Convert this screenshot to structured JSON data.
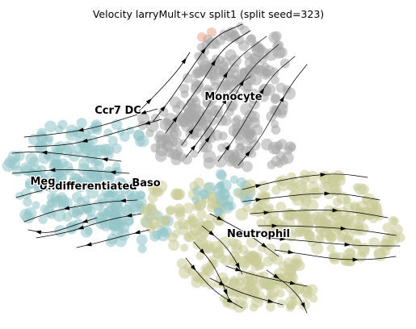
{
  "chart_data": {
    "type": "scatter",
    "title": "Velocity larryMult+scv split1 (split seed=323)",
    "subtitle": "",
    "xlabel": "",
    "ylabel": "",
    "axes_visible": false,
    "grid": false,
    "legend": "none",
    "overlay": "velocity streamlines with arrowheads",
    "clusters": [
      {
        "name": "Monocyte",
        "color": "#a8a8a8"
      },
      {
        "name": "Ccr7 DC",
        "color": "#bcbcbc"
      },
      {
        "name": "Undifferentiated",
        "color": "#93c5c9"
      },
      {
        "name": "Meg",
        "color": "#93c5c9"
      },
      {
        "name": "Baso",
        "color": "#c9cb98"
      },
      {
        "name": "Neutrophil",
        "color": "#c9cb98"
      }
    ]
  },
  "colors": {
    "monocyte": "#a8a8a8",
    "undifferentiated": "#93c5c9",
    "neutrophil": "#c9cb98",
    "mast": "#e9a58b",
    "stream": "#000000"
  }
}
